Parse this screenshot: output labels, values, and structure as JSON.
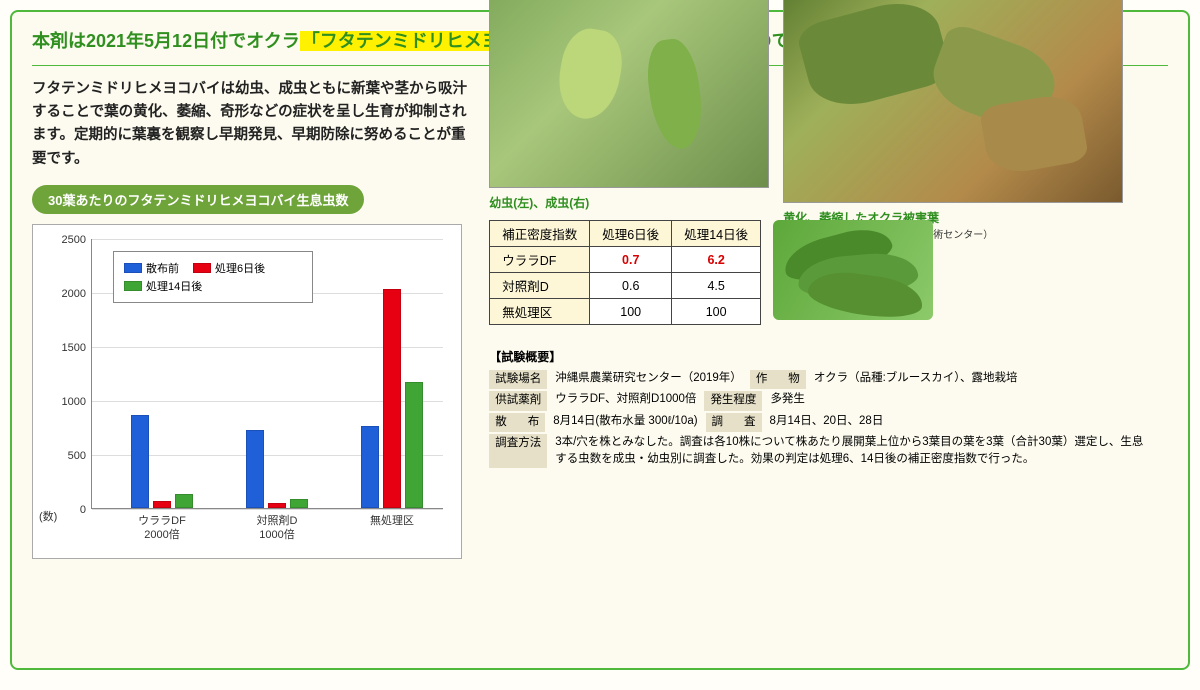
{
  "headline_part1": "本剤は2021年5月12日付でオクラ",
  "headline_highlight": "「フタテンミドリヒメヨコバイ」",
  "headline_part2": "が適用拡大されましたのでその試験成績をご紹介致します。",
  "body_text": "フタテンミドリヒメヨコバイは幼虫、成虫ともに新葉や茎から吸汁することで葉の黄化、萎縮、奇形などの症状を呈し生育が抑制されます。定期的に葉裏を観察し早期発見、早期防除に努めることが重要です。",
  "badge": "30葉あたりのフタテンミドリヒメヨコバイ生息虫数",
  "chart": {
    "ylim": [
      0,
      2500
    ],
    "ytick_step": 500,
    "y_axis_label": "(数)",
    "colors": {
      "pre": "#1f5fd8",
      "d6": "#e60012",
      "d14": "#3fa535"
    },
    "legend": {
      "pre": "散布前",
      "d6": "処理6日後",
      "d14": "処理14日後"
    },
    "groups": [
      {
        "label": "ウララDF\n2000倍",
        "pre": 860,
        "d6": 60,
        "d14": 130
      },
      {
        "label": "対照剤D\n1000倍",
        "pre": 720,
        "d6": 40,
        "d14": 80
      },
      {
        "label": "無処理区",
        "pre": 760,
        "d6": 2030,
        "d14": 1160
      }
    ],
    "background": "#ffffff",
    "border": "#888888",
    "grid": "#dddddd"
  },
  "img1_caption": "幼虫(左)、成虫(右)",
  "img2_caption": "黄化、萎縮したオクラ被害葉",
  "img2_credit": "（写真提供：沖縄県病害虫防除技術センター）",
  "density": {
    "headers": [
      "補正密度指数",
      "処理6日後",
      "処理14日後"
    ],
    "rows": [
      {
        "name": "ウララDF",
        "d6": "0.7",
        "d14": "6.2",
        "highlight": true
      },
      {
        "name": "対照剤D",
        "d6": "0.6",
        "d14": "4.5",
        "highlight": false
      },
      {
        "name": "無処理区",
        "d6": "100",
        "d14": "100",
        "highlight": false
      }
    ]
  },
  "overview": {
    "title": "【試験概要】",
    "rows": [
      [
        {
          "label": "試験場名",
          "value": "沖縄県農業研究センター（2019年）"
        },
        {
          "label": "作　物",
          "value": "オクラ（品種:ブルースカイ）、露地栽培"
        }
      ],
      [
        {
          "label": "供試薬剤",
          "value": "ウララDF、対照剤D1000倍"
        },
        {
          "label": "発生程度",
          "value": "多発生"
        }
      ],
      [
        {
          "label": "散　布",
          "value": "8月14日(散布水量 300ℓ/10a)"
        },
        {
          "label": "調　査",
          "value": "8月14日、20日、28日"
        }
      ]
    ],
    "method_label": "調査方法",
    "method_text": "3本/穴を株とみなした。調査は各10株について株あたり展開葉上位から3葉目の葉を3葉（合計30葉）選定し、生息する虫数を成虫・幼虫別に調査した。効果の判定は処理6、14日後の補正密度指数で行った。"
  }
}
